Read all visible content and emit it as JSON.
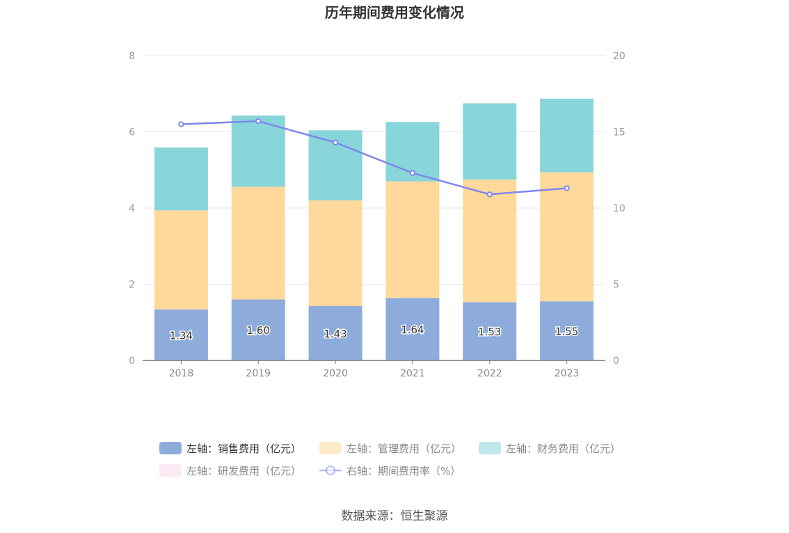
{
  "chart_data": {
    "type": "bar",
    "title": "历年期间费用变化情况",
    "categories": [
      "2018",
      "2019",
      "2020",
      "2021",
      "2022",
      "2023"
    ],
    "stacked": true,
    "y_left": {
      "ylim": [
        0,
        8
      ],
      "ticks": [
        "0",
        "2",
        "4",
        "6",
        "8"
      ]
    },
    "y_right": {
      "ylim": [
        0,
        20
      ],
      "ticks": [
        "0",
        "5",
        "10",
        "15",
        "20"
      ]
    },
    "series": [
      {
        "name": "左轴：销售费用（亿元）",
        "type": "bar",
        "axis": "left",
        "color": "#8eacdb",
        "values": [
          1.34,
          1.6,
          1.43,
          1.64,
          1.53,
          1.55
        ],
        "labels": [
          "1.34",
          "1.60",
          "1.43",
          "1.64",
          "1.53",
          "1.55"
        ]
      },
      {
        "name": "左轴：管理费用（亿元）",
        "type": "bar",
        "axis": "left",
        "color": "#ffd99c",
        "values": [
          2.6,
          2.96,
          2.77,
          3.06,
          3.22,
          3.39
        ]
      },
      {
        "name": "左轴：财务费用（亿元）",
        "type": "bar",
        "axis": "left",
        "color": "#88d5da",
        "values": [
          1.65,
          1.87,
          1.84,
          1.56,
          2.0,
          1.93
        ]
      },
      {
        "name": "左轴：研发费用（亿元）",
        "type": "bar",
        "axis": "left",
        "color": "#f5d8eb",
        "values": [
          0,
          0,
          0,
          0,
          0,
          0
        ]
      },
      {
        "name": "右轴：期间费用率（%）",
        "type": "line",
        "axis": "right",
        "color": "#7f86ee",
        "values": [
          15.5,
          15.7,
          14.3,
          12.3,
          10.9,
          11.3
        ]
      }
    ],
    "grid": true,
    "legend_position": "bottom"
  },
  "source_text": "数据来源：恒生聚源"
}
